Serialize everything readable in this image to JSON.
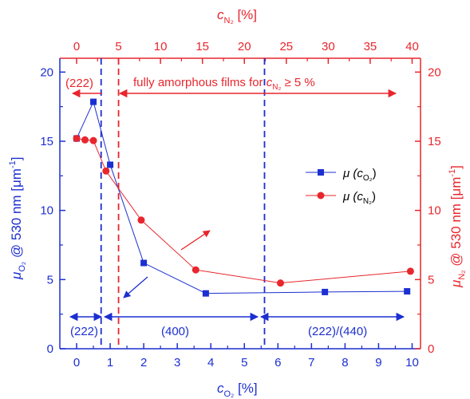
{
  "chart_data": {
    "type": "line",
    "x_bottom": {
      "label_main": "c",
      "label_sub": "O₂",
      "label_unit": " [%]",
      "range": [
        -0.5,
        10.25
      ],
      "ticks": [
        "0",
        "1",
        "2",
        "3",
        "4",
        "5",
        "6",
        "7",
        "8",
        "9",
        "10"
      ]
    },
    "x_top": {
      "label_main": "c",
      "label_sub": "N₂",
      "label_unit": " [%]",
      "range": [
        -2.0,
        41.0
      ],
      "ticks": [
        "0",
        "5",
        "10",
        "15",
        "20",
        "25",
        "30",
        "35",
        "40"
      ]
    },
    "y_left": {
      "label_main": "μ",
      "label_sub": "O₂",
      "label_rest": " @ 530 nm [μm",
      "label_sup": "-1",
      "label_end": "]",
      "range": [
        0,
        21
      ],
      "ticks": [
        "0",
        "5",
        "10",
        "15",
        "20"
      ]
    },
    "y_right": {
      "label_main": "μ",
      "label_sub": "N₂",
      "label_rest": " @ 530 nm [μm",
      "label_sup": "-1",
      "label_end": "]",
      "range": [
        0,
        21
      ],
      "ticks": [
        "0",
        "5",
        "10",
        "15",
        "20"
      ]
    },
    "series": [
      {
        "legend_main": "μ (c",
        "legend_sub": "O₂",
        "legend_end": ")",
        "color": "#1c2fd0",
        "marker": "square",
        "axis": "bottom",
        "x": [
          0,
          0.5,
          1.0,
          2.0,
          3.85,
          7.4,
          9.85
        ],
        "y": [
          15.2,
          17.85,
          13.3,
          6.2,
          4.0,
          4.1,
          4.15
        ]
      },
      {
        "legend_main": "μ (c",
        "legend_sub": "N₂",
        "legend_end": ")",
        "color": "#e8262d",
        "marker": "circle",
        "axis": "top",
        "x": [
          0,
          1.0,
          2.0,
          3.5,
          7.7,
          14.2,
          24.3,
          39.8
        ],
        "y": [
          15.2,
          15.1,
          15.05,
          12.85,
          9.3,
          5.7,
          4.75,
          5.6
        ]
      }
    ],
    "reference_lines": [
      {
        "axis": "bottom",
        "x": 0.73,
        "color": "#1c2fd0"
      },
      {
        "axis": "bottom",
        "x": 5.6,
        "color": "#1c2fd0"
      },
      {
        "axis": "top",
        "x": 5.0,
        "color": "#e8262d"
      }
    ],
    "annotations": {
      "top_phase": "(222)",
      "amorphous_text": "fully amorphous films for ",
      "amorphous_c": "c",
      "amorphous_sub": "N₂",
      "amorphous_end": " ≥ 5 %",
      "phase_1": "(222)",
      "phase_2": "(400)",
      "phase_3": "(222)/(440)"
    },
    "grid": false,
    "legend_position": "center-right"
  }
}
